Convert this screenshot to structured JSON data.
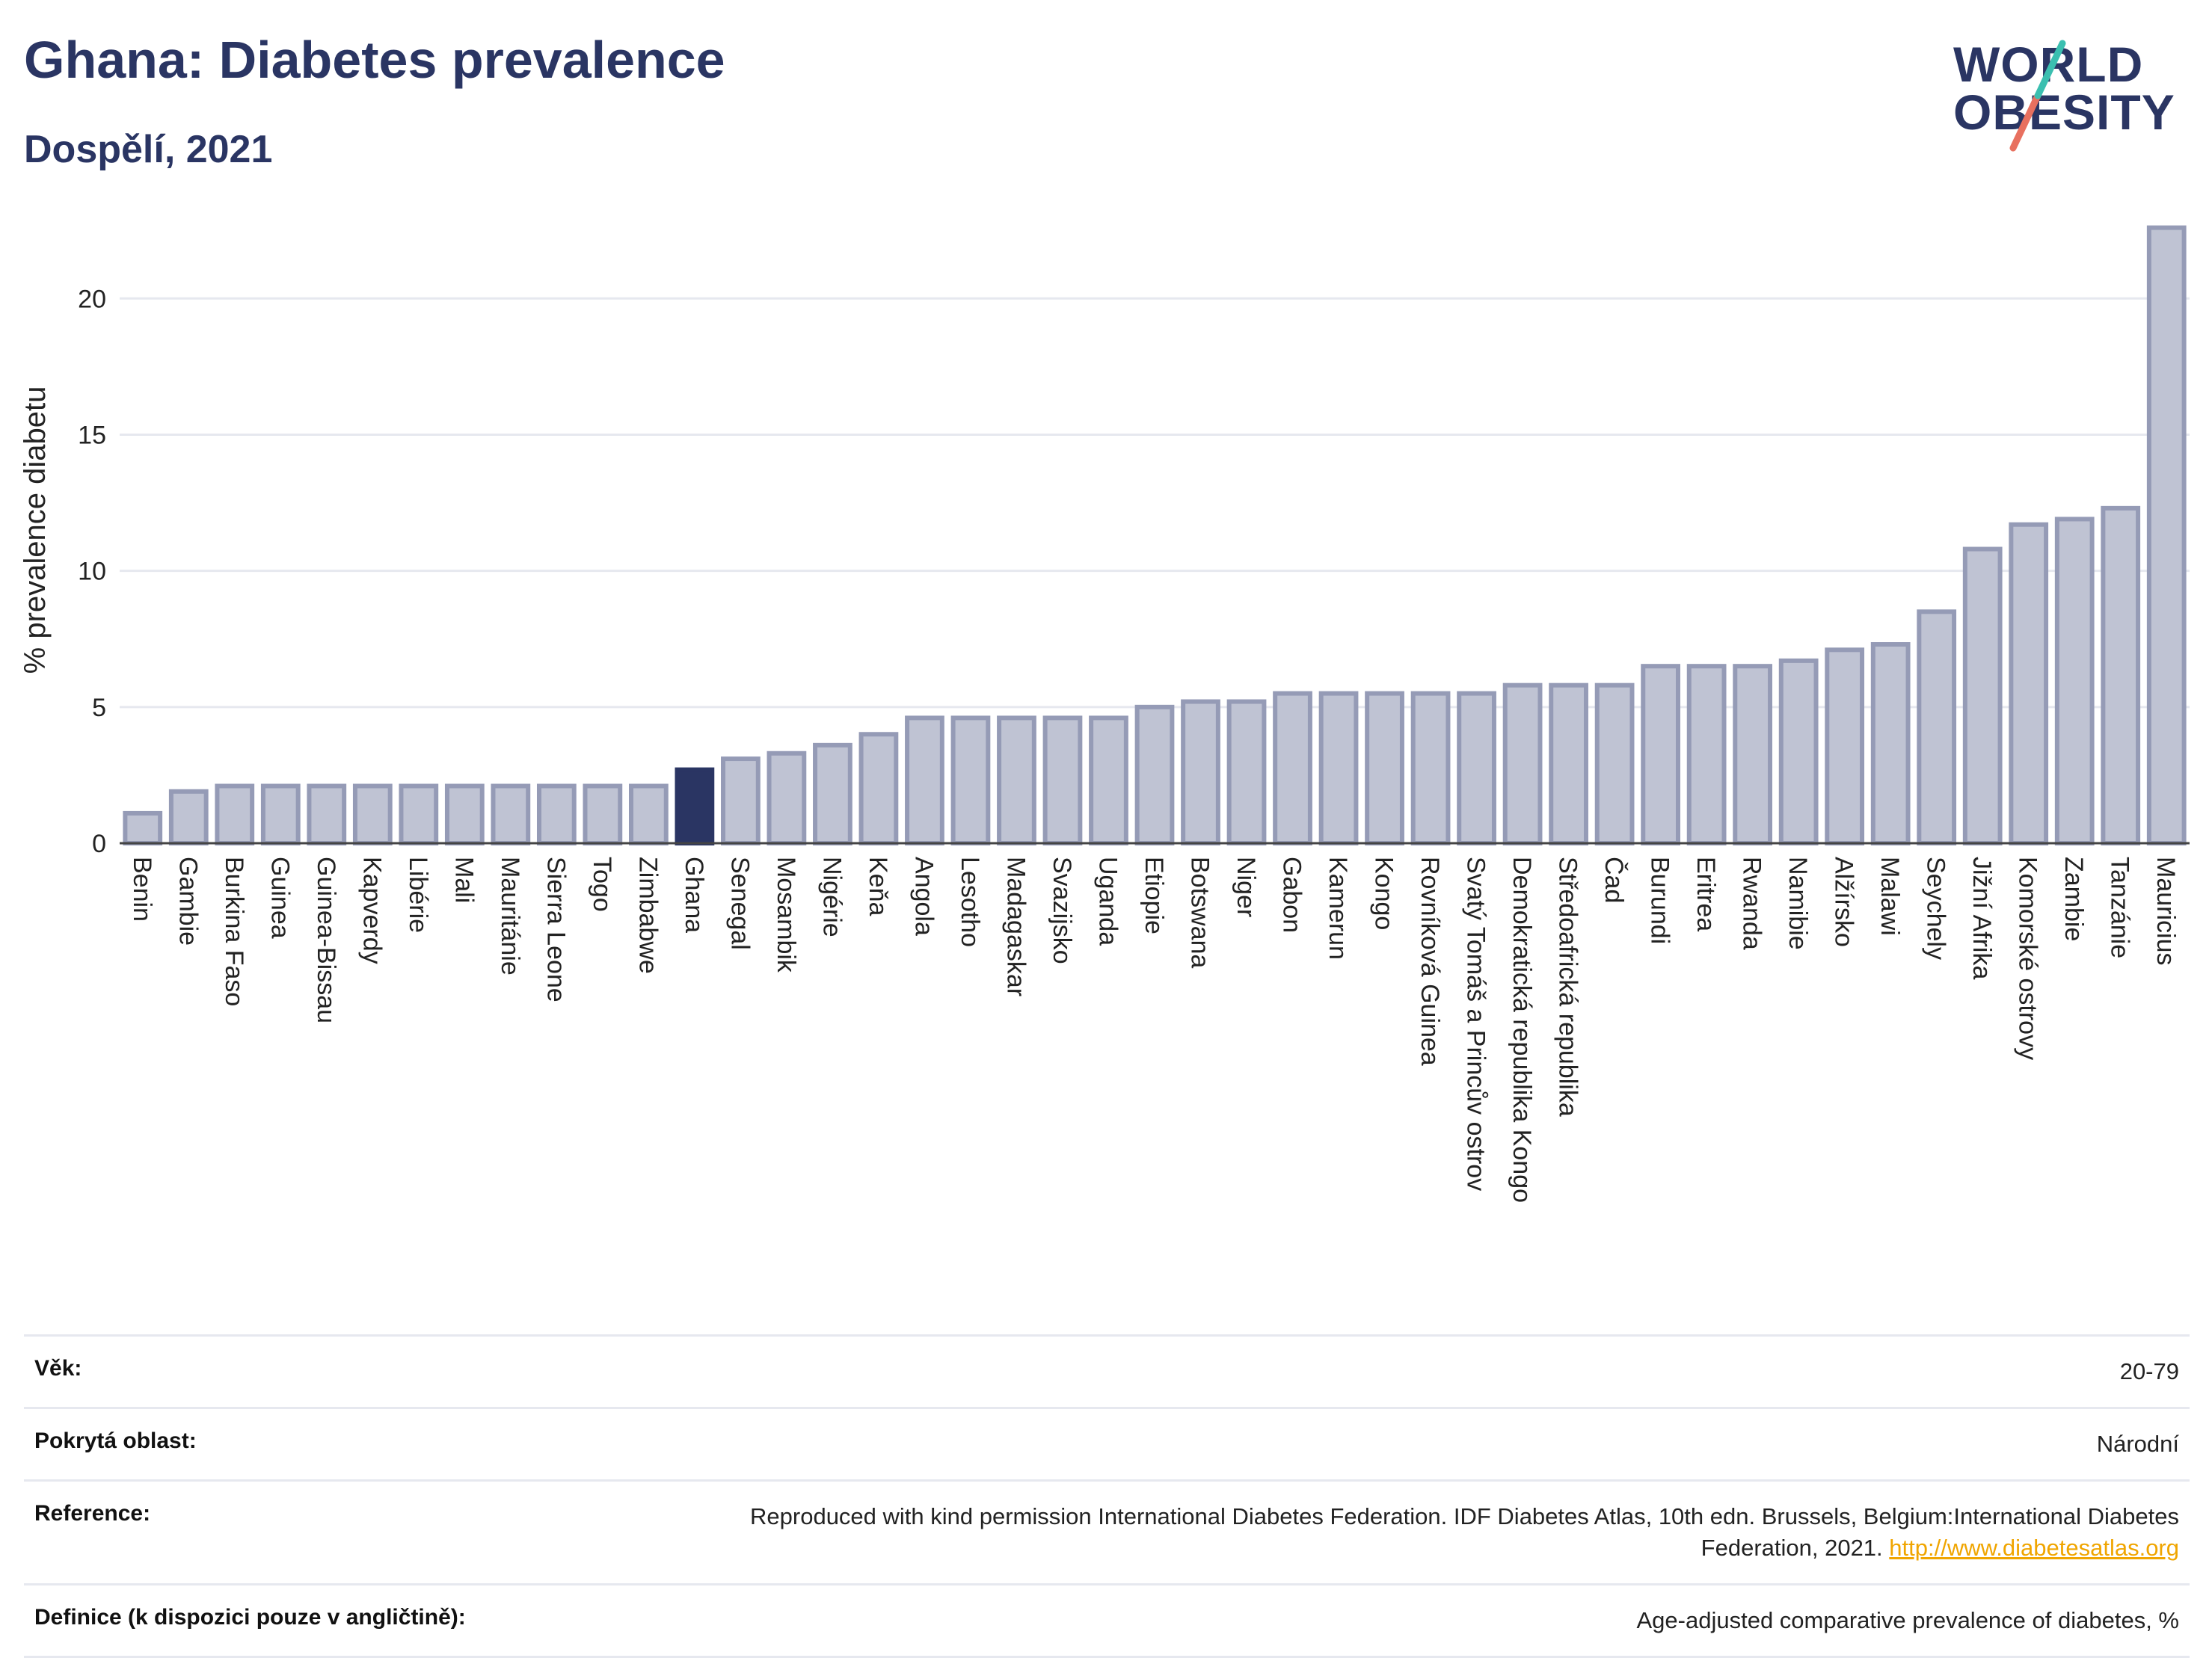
{
  "header": {
    "title": "Ghana: Diabetes prevalence",
    "subtitle": "Dospělí, 2021"
  },
  "logo": {
    "line1": "WORLD",
    "line2": "OBESITY"
  },
  "colors": {
    "bar": "#bfc3d3",
    "bar_stroke": "#959bb6",
    "highlight": "#2a3563",
    "grid": "#e6e8ef",
    "text": "#2a3563"
  },
  "chart_data": {
    "type": "bar",
    "title": "Ghana: Diabetes prevalence",
    "ylabel": "% prevalence diabetu",
    "xlabel": "",
    "ylim": [
      0,
      23
    ],
    "yticks": [
      0,
      5,
      10,
      15,
      20
    ],
    "grid": true,
    "highlight": "Ghana",
    "categories": [
      "Benin",
      "Gambie",
      "Burkina Faso",
      "Guinea",
      "Guinea-Bissau",
      "Kapverdy",
      "Libérie",
      "Mali",
      "Mauritánie",
      "Sierra Leone",
      "Togo",
      "Zimbabwe",
      "Ghana",
      "Senegal",
      "Mosambik",
      "Nigérie",
      "Keňa",
      "Angola",
      "Lesotho",
      "Madagaskar",
      "Svazijsko",
      "Uganda",
      "Etiopie",
      "Botswana",
      "Niger",
      "Gabon",
      "Kamerun",
      "Kongo",
      "Rovníková Guinea",
      "Svatý Tomáš a Princův ostrov",
      "Demokratická republika Kongo",
      "Středoafrická republika",
      "Čad",
      "Burundi",
      "Eritrea",
      "Rwanda",
      "Namibie",
      "Alžírsko",
      "Malawi",
      "Seychely",
      "Jižní Afrika",
      "Komorské ostrovy",
      "Zambie",
      "Tanzánie",
      "Mauricius"
    ],
    "values": [
      1.1,
      1.9,
      2.1,
      2.1,
      2.1,
      2.1,
      2.1,
      2.1,
      2.1,
      2.1,
      2.1,
      2.1,
      2.7,
      3.1,
      3.3,
      3.6,
      4.0,
      4.6,
      4.6,
      4.6,
      4.6,
      4.6,
      5.0,
      5.2,
      5.2,
      5.5,
      5.5,
      5.5,
      5.5,
      5.5,
      5.8,
      5.8,
      5.8,
      6.5,
      6.5,
      6.5,
      6.7,
      7.1,
      7.3,
      8.5,
      10.8,
      11.7,
      11.9,
      12.3,
      22.6
    ]
  },
  "meta": [
    {
      "label": "Věk:",
      "value": "20-79"
    },
    {
      "label": "Pokrytá oblast:",
      "value": "Národní"
    },
    {
      "label": "Reference:",
      "value": "Reproduced with kind permission International Diabetes Federation.  IDF Diabetes Atlas, 10th edn. Brussels, Belgium:International Diabetes Federation, 2021. ",
      "link": "http://www.diabetesatlas.org"
    },
    {
      "label": "Definice (k dispozici pouze v angličtině):",
      "value": "Age-adjusted comparative prevalence of diabetes, %"
    }
  ]
}
